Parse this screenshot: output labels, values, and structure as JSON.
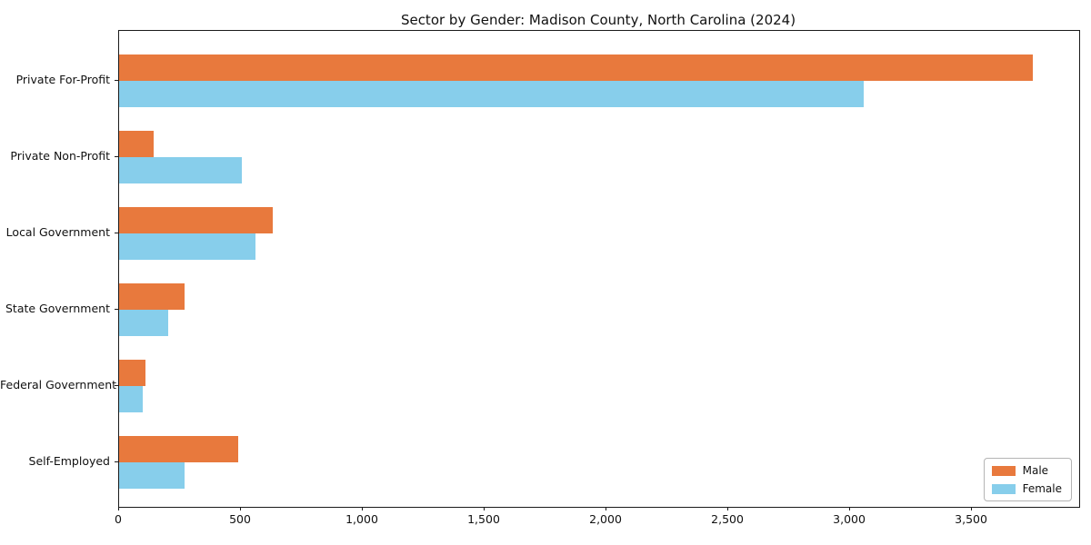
{
  "chart_data": {
    "type": "bar",
    "orientation": "horizontal",
    "title": "Sector by Gender: Madison County, North Carolina (2024)",
    "xlabel": "",
    "ylabel": "",
    "categories": [
      "Private For-Profit",
      "Private Non-Profit",
      "Local Government",
      "State Government",
      "Federal Government",
      "Self-Employed"
    ],
    "series": [
      {
        "name": "Male",
        "color": "#e8793d",
        "values": [
          3750,
          140,
          630,
          270,
          108,
          490
        ]
      },
      {
        "name": "Female",
        "color": "#87ceeb",
        "values": [
          3055,
          505,
          558,
          202,
          97,
          270
        ]
      }
    ],
    "xlim": [
      0,
      3940
    ],
    "xticks": [
      0,
      500,
      1000,
      1500,
      2000,
      2500,
      3000,
      3500
    ],
    "xtick_labels": [
      "0",
      "500",
      "1,000",
      "1,500",
      "2,000",
      "2,500",
      "3,000",
      "3,500"
    ],
    "grid": false,
    "legend_position": "lower right",
    "plot_background": "#ffffff",
    "spine_color": "#1a1a1a"
  }
}
